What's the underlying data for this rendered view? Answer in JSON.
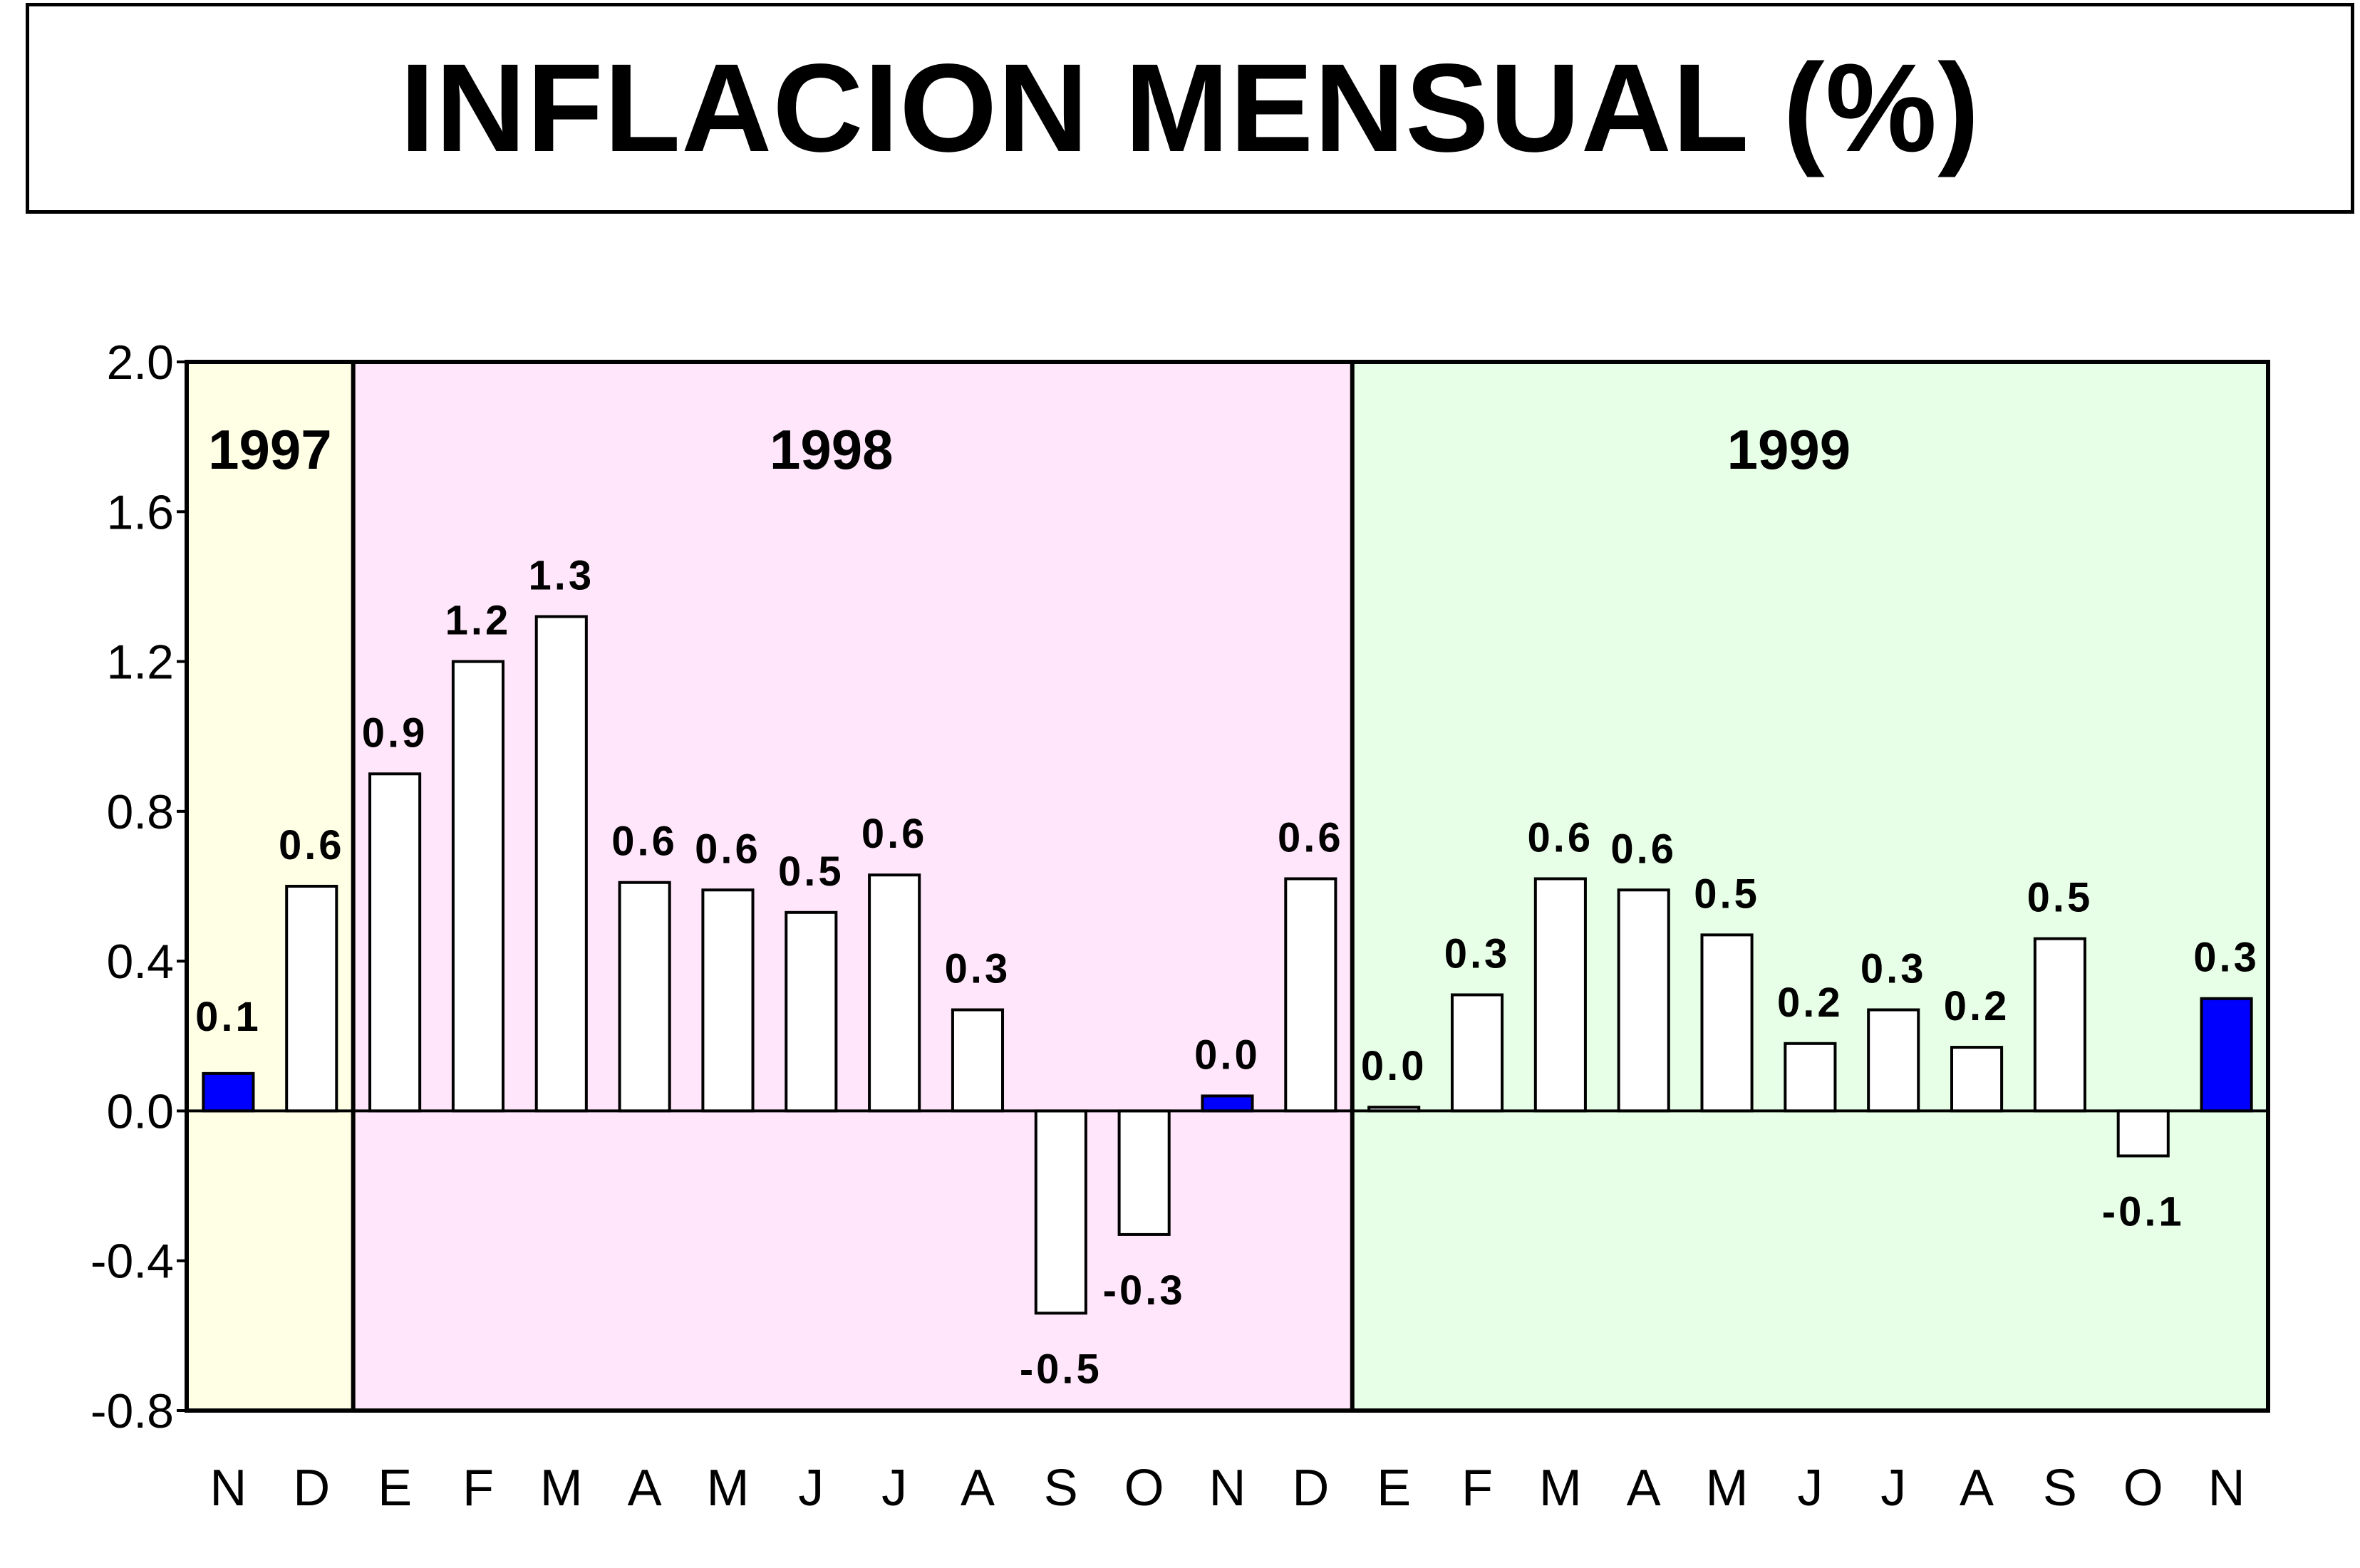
{
  "chart_data": {
    "type": "bar",
    "title": "INFLACION MENSUAL (%)",
    "xlabel": "",
    "ylabel": "",
    "ylim": [
      -0.8,
      2.0
    ],
    "yticks": [
      "2.0",
      "1.6",
      "1.2",
      "0.8",
      "0.4",
      "0.0",
      "-0.4",
      "-0.8"
    ],
    "ytick_values": [
      2.0,
      1.6,
      1.2,
      0.8,
      0.4,
      0.0,
      -0.4,
      -0.8
    ],
    "categories": [
      "N",
      "D",
      "E",
      "F",
      "M",
      "A",
      "M",
      "J",
      "J",
      "A",
      "S",
      "O",
      "N",
      "D",
      "E",
      "F",
      "M",
      "A",
      "M",
      "J",
      "J",
      "A",
      "S",
      "O",
      "N"
    ],
    "values": [
      0.1,
      0.6,
      0.9,
      1.2,
      1.32,
      0.61,
      0.59,
      0.53,
      0.63,
      0.27,
      -0.54,
      -0.33,
      0.04,
      0.62,
      0.01,
      0.31,
      0.62,
      0.59,
      0.47,
      0.18,
      0.27,
      0.17,
      0.46,
      -0.12,
      0.3
    ],
    "data_labels": [
      "0.1",
      "0.6",
      "0.9",
      "1.2",
      "1.3",
      "0.6",
      "0.6",
      "0.5",
      "0.6",
      "0.3",
      "-0.5",
      "-0.3",
      "0.0",
      "0.6",
      "0.0",
      "0.3",
      "0.6",
      "0.6",
      "0.5",
      "0.2",
      "0.3",
      "0.2",
      "0.5",
      "-0.1",
      "0.3"
    ],
    "highlighted_indices": [
      0,
      12,
      24
    ],
    "year_bands": [
      {
        "label": "1997",
        "start": 0,
        "end": 1,
        "color": "#ffffe6"
      },
      {
        "label": "1998",
        "start": 2,
        "end": 13,
        "color": "#ffe6fa"
      },
      {
        "label": "1999",
        "start": 14,
        "end": 24,
        "color": "#e6ffe6"
      }
    ],
    "grid": false,
    "legend": "none",
    "colors": {
      "bar": "#ffffff",
      "highlight": "#0000ff",
      "outline": "#000000"
    }
  }
}
